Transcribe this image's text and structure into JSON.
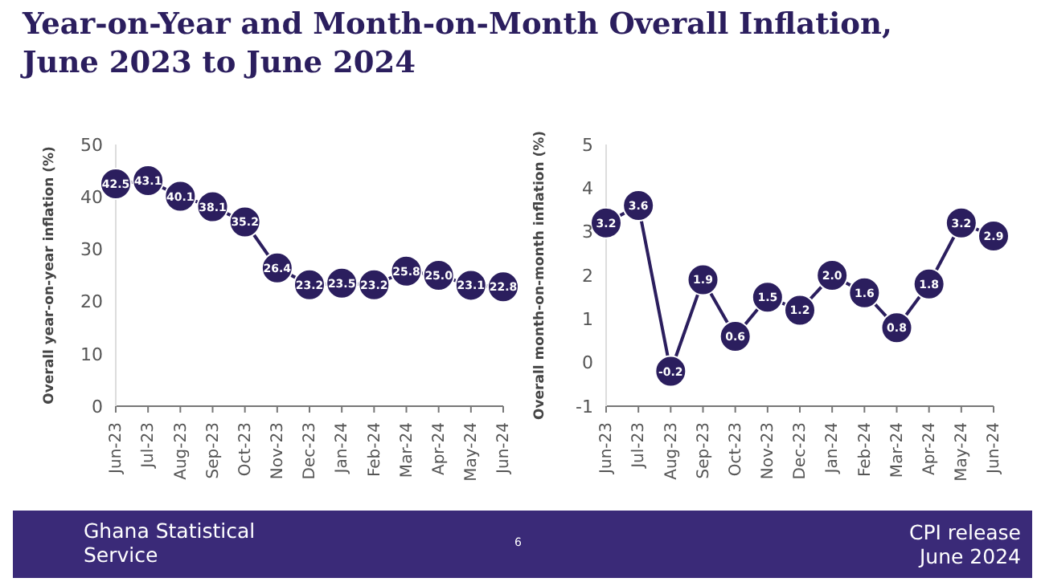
{
  "chart_data": [
    {
      "type": "line",
      "title": "Year-on-Year and Month-on-Month Overall Inflation, June 2023 to June 2024",
      "ylabel": "Overall year-on-year inflation (%)",
      "categories": [
        "Jun-23",
        "Jul-23",
        "Aug-23",
        "Sep-23",
        "Oct-23",
        "Nov-23",
        "Dec-23",
        "Jan-24",
        "Feb-24",
        "Mar-24",
        "Apr-24",
        "May-24",
        "Jun-24"
      ],
      "series": [
        {
          "color": "#2b1e5e",
          "values": [
            42.5,
            43.1,
            40.1,
            38.1,
            35.2,
            26.4,
            23.2,
            23.5,
            23.2,
            25.8,
            25.0,
            23.1,
            22.8
          ],
          "value_labels": [
            "42.5",
            "43.1",
            "40.1",
            "38.1",
            "35.2",
            "26.4",
            "23.2",
            "23.5",
            "23.2",
            "25.8",
            "25.0",
            "23.1",
            "22.8"
          ]
        }
      ],
      "ylim": [
        0,
        50
      ],
      "yticks": [
        0,
        10,
        20,
        30,
        40,
        50
      ],
      "grid": false,
      "legend": false,
      "marker": "circle",
      "line_style": "solid",
      "annotations": [
        "Ghana Statistical Service",
        "6",
        "CPI release June 2024"
      ]
    },
    {
      "type": "line",
      "ylabel": "Overall month-on-month inflation (%)",
      "categories": [
        "Jun-23",
        "Jul-23",
        "Aug-23",
        "Sep-23",
        "Oct-23",
        "Nov-23",
        "Dec-23",
        "Jan-24",
        "Feb-24",
        "Mar-24",
        "Apr-24",
        "May-24",
        "Jun-24"
      ],
      "series": [
        {
          "color": "#2b1e5e",
          "values": [
            3.2,
            3.6,
            -0.2,
            1.9,
            0.6,
            1.5,
            1.2,
            2.0,
            1.6,
            0.8,
            1.8,
            3.2,
            2.9
          ],
          "value_labels": [
            "3.2",
            "3.6",
            "-0.2",
            "1.9",
            "0.6",
            "1.5",
            "1.2",
            "2.0",
            "1.6",
            "0.8",
            "1.8",
            "3.2",
            "2.9"
          ]
        }
      ],
      "ylim": [
        -1,
        5
      ],
      "yticks": [
        -1,
        0,
        1,
        2,
        3,
        4,
        5
      ],
      "grid": false,
      "legend": false,
      "marker": "circle",
      "line_style": "solid"
    }
  ]
}
